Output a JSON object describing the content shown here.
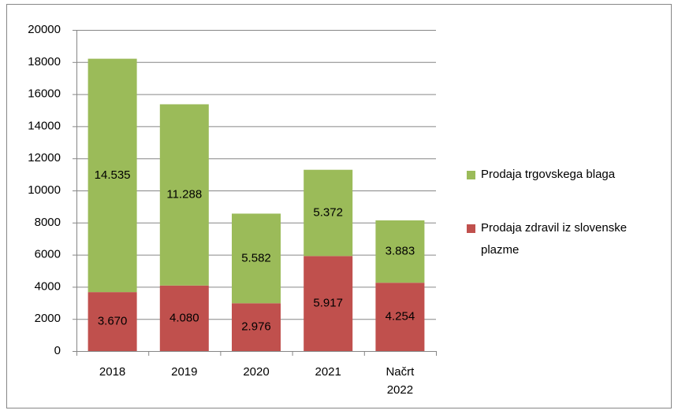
{
  "chart_data": {
    "type": "bar",
    "stacked": true,
    "categories": [
      "2018",
      "2019",
      "2020",
      "2021",
      "Načrt 2022"
    ],
    "series": [
      {
        "name": "Prodaja zdravil iz slovenske plazme",
        "color": "#c0504d",
        "values": [
          3670,
          4080,
          2976,
          5917,
          4254
        ],
        "value_labels": [
          "3.670",
          "4.080",
          "2.976",
          "5.917",
          "4.254"
        ]
      },
      {
        "name": "Prodaja trgovskega blaga",
        "color": "#9bbb59",
        "values": [
          14535,
          11288,
          5582,
          5372,
          3883
        ],
        "value_labels": [
          "14.535",
          "11.288",
          "5.582",
          "5.372",
          "3.883"
        ]
      }
    ],
    "ylim": [
      0,
      20000
    ],
    "yticks": [
      0,
      2000,
      4000,
      6000,
      8000,
      10000,
      12000,
      14000,
      16000,
      18000,
      20000
    ],
    "grid": true,
    "legend": "right"
  }
}
